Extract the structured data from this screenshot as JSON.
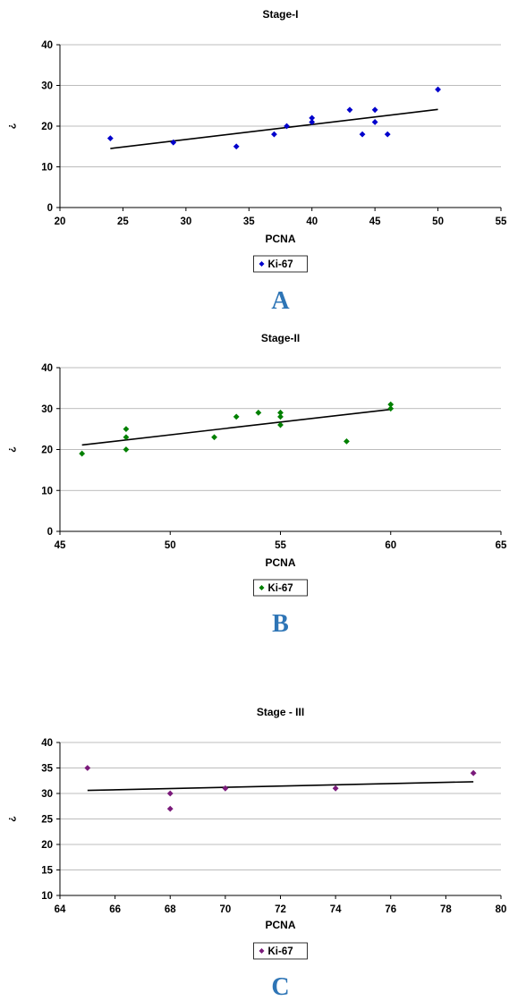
{
  "chart_data": [
    {
      "type": "scatter",
      "title": "Stage-I",
      "xlabel": "PCNA",
      "ylabel": "¿",
      "xlim": [
        20,
        55
      ],
      "ylim": [
        0,
        40
      ],
      "xticks": [
        20,
        25,
        30,
        35,
        40,
        45,
        50,
        55
      ],
      "yticks": [
        0,
        10,
        20,
        30,
        40
      ],
      "grid": "horizontal",
      "legend": "bottom-center",
      "panel_label": "A",
      "series": [
        {
          "name": "Ki-67",
          "color": "#0000cc",
          "marker": "diamond",
          "points": [
            [
              24,
              17
            ],
            [
              29,
              16
            ],
            [
              34,
              15
            ],
            [
              37,
              18
            ],
            [
              38,
              20
            ],
            [
              40,
              21
            ],
            [
              40,
              22
            ],
            [
              43,
              24
            ],
            [
              44,
              18
            ],
            [
              45,
              21
            ],
            [
              45,
              24
            ],
            [
              46,
              18
            ],
            [
              50,
              29
            ]
          ]
        }
      ],
      "trendline": [
        [
          24,
          14.5
        ],
        [
          50,
          24.1
        ]
      ]
    },
    {
      "type": "scatter",
      "title": "Stage-II",
      "xlabel": "PCNA",
      "ylabel": "¿",
      "xlim": [
        45,
        65
      ],
      "ylim": [
        0,
        40
      ],
      "xticks": [
        45,
        50,
        55,
        60,
        65
      ],
      "yticks": [
        0,
        10,
        20,
        30,
        40
      ],
      "grid": "horizontal",
      "legend": "bottom-center",
      "panel_label": "B",
      "series": [
        {
          "name": "Ki-67",
          "color": "#008000",
          "marker": "diamond",
          "points": [
            [
              46,
              19
            ],
            [
              48,
              20
            ],
            [
              48,
              23
            ],
            [
              48,
              25
            ],
            [
              52,
              23
            ],
            [
              53,
              28
            ],
            [
              54,
              29
            ],
            [
              55,
              26
            ],
            [
              55,
              28
            ],
            [
              55,
              29
            ],
            [
              58,
              22
            ],
            [
              60,
              30
            ],
            [
              60,
              31
            ]
          ]
        }
      ],
      "trendline": [
        [
          46,
          21.1
        ],
        [
          60,
          29.8
        ]
      ]
    },
    {
      "type": "scatter",
      "title": "Stage - III",
      "xlabel": "PCNA",
      "ylabel": "¿",
      "xlim": [
        64,
        80
      ],
      "ylim": [
        10,
        40
      ],
      "xticks": [
        64,
        66,
        68,
        70,
        72,
        74,
        76,
        78,
        80
      ],
      "yticks": [
        10,
        15,
        20,
        25,
        30,
        35,
        40
      ],
      "grid": "horizontal",
      "legend": "bottom-center",
      "panel_label": "C",
      "series": [
        {
          "name": "Ki-67",
          "color": "#7a1a7a",
          "marker": "diamond",
          "points": [
            [
              65,
              35
            ],
            [
              68,
              30
            ],
            [
              68,
              27
            ],
            [
              70,
              31
            ],
            [
              74,
              31
            ],
            [
              79,
              34
            ]
          ]
        }
      ],
      "trendline": [
        [
          65,
          30.6
        ],
        [
          79,
          32.3
        ]
      ]
    }
  ]
}
